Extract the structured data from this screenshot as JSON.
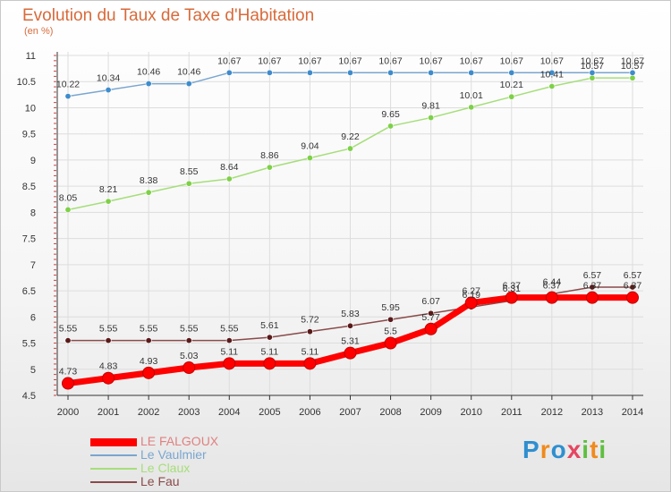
{
  "title": "Evolution du Taux de Taxe d'Habitation",
  "subtitle": "(en %)",
  "logo": {
    "letters": [
      "P",
      "r",
      "o",
      "x",
      "i",
      "t",
      "i"
    ]
  },
  "chart_data": {
    "type": "line",
    "x": [
      2000,
      2001,
      2002,
      2003,
      2004,
      2005,
      2006,
      2007,
      2008,
      2009,
      2010,
      2011,
      2012,
      2013,
      2014
    ],
    "ylim": [
      4.5,
      11
    ],
    "y_ticks": [
      4.5,
      5,
      5.5,
      6,
      6.5,
      7,
      7.5,
      8,
      8.5,
      9,
      9.5,
      10,
      10.5,
      11
    ],
    "y_tick_labels": [
      "4.5",
      "5",
      "5.5",
      "6",
      "6.5",
      "7",
      "7.5",
      "8",
      "8.5",
      "9",
      "9.5",
      "10",
      "10.5",
      "11"
    ],
    "grid": true,
    "legend_position": "bottom-left",
    "series": [
      {
        "name": "LE FALGOUX",
        "color": "#ff0000",
        "marker": "#ff0000",
        "values": [
          4.73,
          4.83,
          4.93,
          5.03,
          5.11,
          5.11,
          5.11,
          5.31,
          5.5,
          5.77,
          6.27,
          6.37,
          6.37,
          6.37,
          6.37
        ],
        "labels": [
          "4.73",
          "4.83",
          "4.93",
          "5.03",
          "5.11",
          "5.11",
          "5.11",
          "5.31",
          "5.5",
          "5.77",
          "6.27",
          "6.37",
          "6.37",
          "6.37",
          "6.37"
        ]
      },
      {
        "name": "Le Vaulmier",
        "color": "#7aa6cf",
        "marker": "#3f8ccc",
        "values": [
          10.22,
          10.34,
          10.46,
          10.46,
          10.67,
          10.67,
          10.67,
          10.67,
          10.67,
          10.67,
          10.67,
          10.67,
          10.67,
          10.67,
          10.67
        ],
        "labels": [
          "10.22",
          "10.34",
          "10.46",
          "10.46",
          "10.67",
          "10.67",
          "10.67",
          "10.67",
          "10.67",
          "10.67",
          "10.67",
          "10.67",
          "10.67",
          "10.67",
          "10.67"
        ]
      },
      {
        "name": "Le Claux",
        "color": "#a6de7a",
        "marker": "#7ed048",
        "values": [
          8.05,
          8.21,
          8.38,
          8.55,
          8.64,
          8.86,
          9.04,
          9.22,
          9.65,
          9.81,
          10.01,
          10.21,
          10.41,
          10.57,
          10.57
        ],
        "labels": [
          "8.05",
          "8.21",
          "8.38",
          "8.55",
          "8.64",
          "8.86",
          "9.04",
          "9.22",
          "9.65",
          "9.81",
          "10.01",
          "10.21",
          "10.41",
          "10.57",
          "10.57"
        ]
      },
      {
        "name": "Le Fau",
        "color": "#8a4a4a",
        "marker": "#5a1a1a",
        "values": [
          5.55,
          5.55,
          5.55,
          5.55,
          5.55,
          5.61,
          5.72,
          5.83,
          5.95,
          6.07,
          6.19,
          6.31,
          6.44,
          6.57,
          6.57
        ],
        "labels": [
          "5.55",
          "5.55",
          "5.55",
          "5.55",
          "5.55",
          "5.61",
          "5.72",
          "5.83",
          "5.95",
          "6.07",
          "6.19",
          "6.31",
          "6.44",
          "6.57",
          "6.57"
        ]
      }
    ]
  }
}
